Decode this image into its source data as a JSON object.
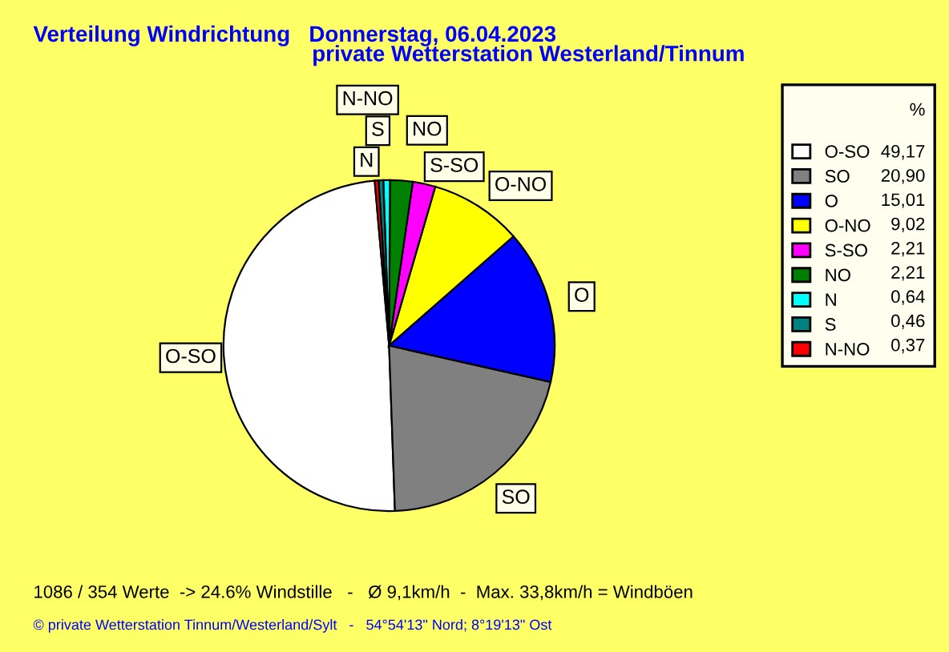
{
  "chart_data": {
    "type": "pie",
    "title": "Verteilung Windrichtung   Donnerstag, 06.04.2023",
    "subtitle": "private Wetterstation Westerland/Tinnum",
    "legend_title": "%",
    "legend": "right",
    "categories": [
      "O-SO",
      "SO",
      "O",
      "O-NO",
      "S-SO",
      "NO",
      "N",
      "S",
      "N-NO"
    ],
    "values": [
      49.17,
      20.9,
      15.01,
      9.02,
      2.21,
      2.21,
      0.64,
      0.46,
      0.37
    ],
    "value_labels": [
      "49,17",
      "20,90",
      "15,01",
      "9,02",
      "2,21",
      "2,21",
      "0,64",
      "0,46",
      "0,37"
    ],
    "colors": [
      "#ffffff",
      "#808080",
      "#0000ff",
      "#ffff00",
      "#ff00ff",
      "#008000",
      "#00ffff",
      "#008080",
      "#ff0000"
    ],
    "annotations": [
      "1086 / 354 Werte  -> 24.6% Windstille   -   Ø 9,1km/h  -  Max. 33,8km/h = Windböen",
      "© private Wetterstation Tinnum/Westerland/Sylt   -   54°54'13\" Nord; 8°19'13\" Ost"
    ]
  }
}
